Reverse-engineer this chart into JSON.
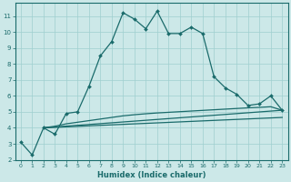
{
  "xlabel": "Humidex (Indice chaleur)",
  "ylabel": "",
  "xlim": [
    -0.5,
    23.5
  ],
  "ylim": [
    2,
    11.8
  ],
  "yticks": [
    2,
    3,
    4,
    5,
    6,
    7,
    8,
    9,
    10,
    11
  ],
  "xticks": [
    0,
    1,
    2,
    3,
    4,
    5,
    6,
    7,
    8,
    9,
    10,
    11,
    12,
    13,
    14,
    15,
    16,
    17,
    18,
    19,
    20,
    21,
    22,
    23
  ],
  "background_color": "#cce8e8",
  "grid_color": "#9fcfcf",
  "line_color": "#1a6b6b",
  "line1_x": [
    0,
    1,
    2,
    3,
    4,
    5,
    6,
    7,
    8,
    9,
    10,
    11,
    12,
    13,
    14,
    15,
    16,
    17,
    18,
    19,
    20,
    21,
    22,
    23
  ],
  "line1_y": [
    3.1,
    2.3,
    4.0,
    3.6,
    4.9,
    5.0,
    6.6,
    8.5,
    9.4,
    11.2,
    10.8,
    10.2,
    11.3,
    9.9,
    9.9,
    10.3,
    9.9,
    7.2,
    6.5,
    6.1,
    5.4,
    5.5,
    6.0,
    5.1
  ],
  "line2_x": [
    2,
    3,
    4,
    5,
    6,
    7,
    8,
    9,
    10,
    11,
    12,
    13,
    14,
    15,
    16,
    17,
    18,
    19,
    20,
    21,
    22,
    23
  ],
  "line2_y": [
    4.0,
    4.1,
    4.25,
    4.35,
    4.45,
    4.55,
    4.65,
    4.75,
    4.82,
    4.88,
    4.93,
    4.97,
    5.01,
    5.05,
    5.09,
    5.13,
    5.17,
    5.21,
    5.25,
    5.28,
    5.32,
    5.1
  ],
  "line3_x": [
    2,
    23
  ],
  "line3_y": [
    4.0,
    5.1
  ],
  "line4_x": [
    2,
    23
  ],
  "line4_y": [
    4.0,
    4.65
  ]
}
